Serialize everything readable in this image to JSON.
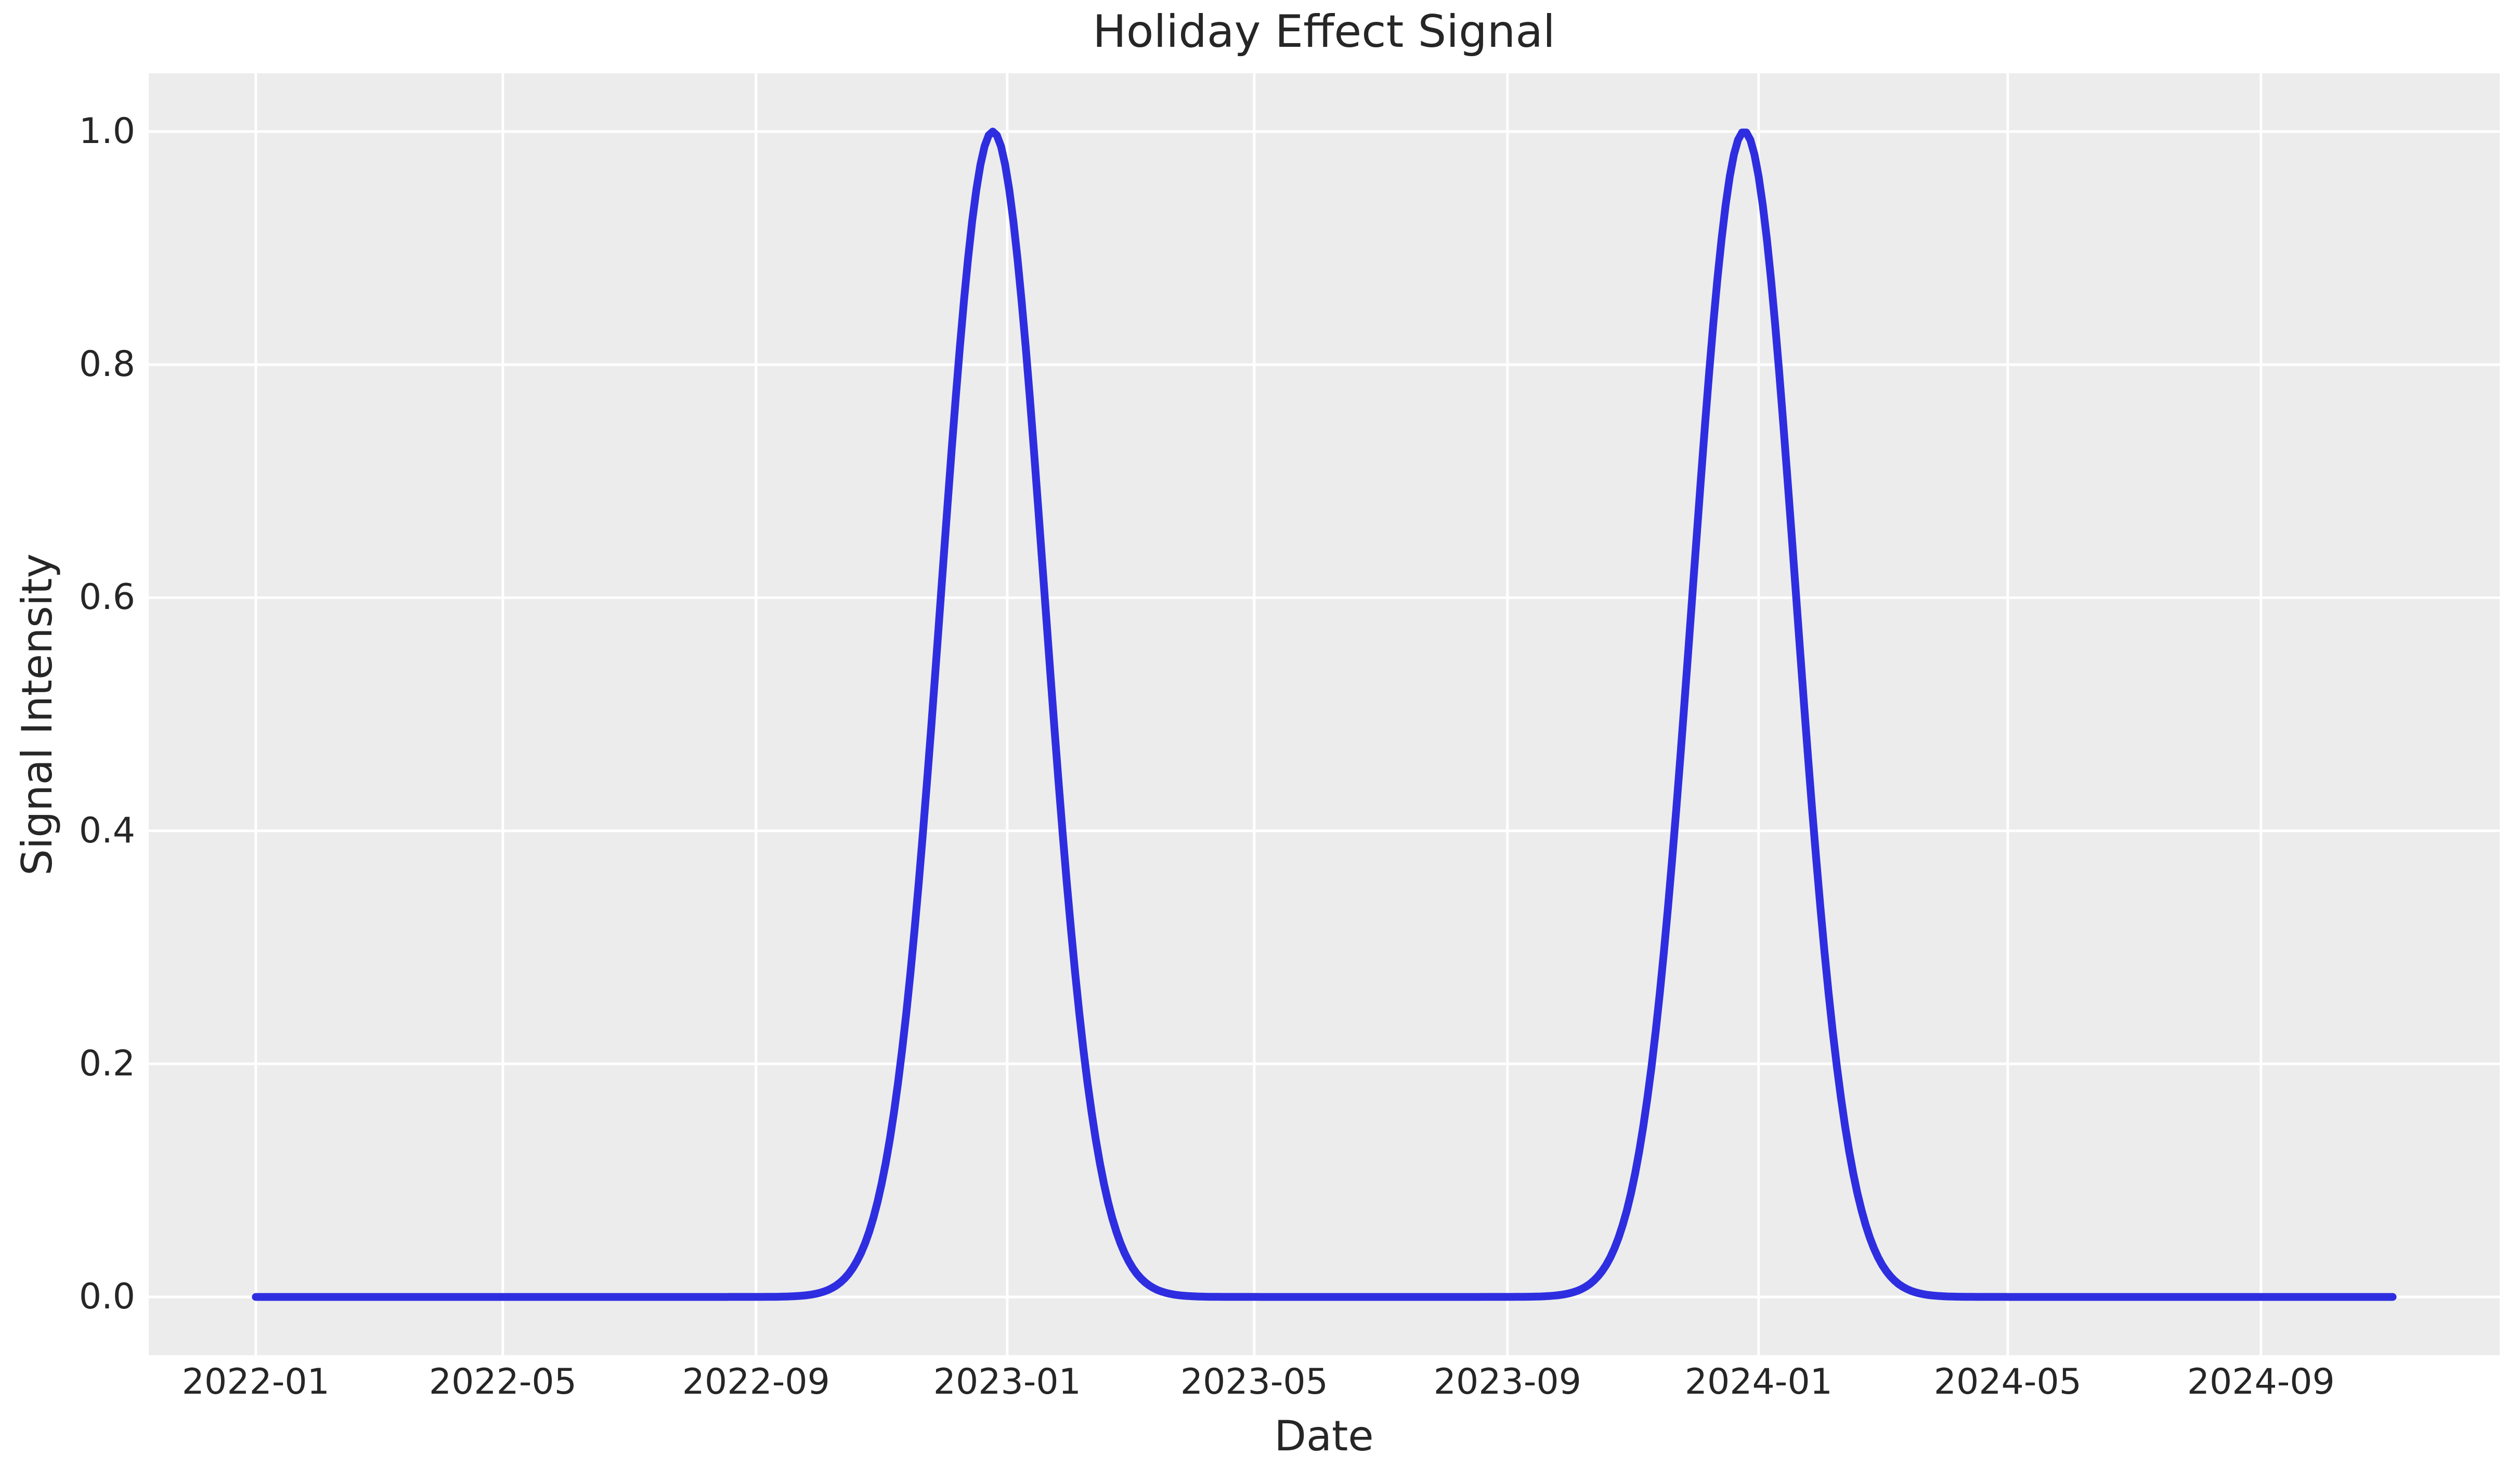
{
  "chart_data": {
    "type": "line",
    "title": "Holiday Effect Signal",
    "xlabel": "Date",
    "ylabel": "Signal Intensity",
    "grid": true,
    "legend": "none",
    "x_ticks": [
      {
        "label": "2022-01",
        "day": 0
      },
      {
        "label": "2022-05",
        "day": 120
      },
      {
        "label": "2022-09",
        "day": 243
      },
      {
        "label": "2023-01",
        "day": 365
      },
      {
        "label": "2023-05",
        "day": 485
      },
      {
        "label": "2023-09",
        "day": 608
      },
      {
        "label": "2024-01",
        "day": 730
      },
      {
        "label": "2024-05",
        "day": 851
      },
      {
        "label": "2024-09",
        "day": 974
      }
    ],
    "y_tick_labels": [
      "0.0",
      "0.2",
      "0.4",
      "0.6",
      "0.8",
      "1.0"
    ],
    "y_tick_values": [
      0.0,
      0.2,
      0.4,
      0.6,
      0.8,
      1.0
    ],
    "date_start": "2022-01-01",
    "date_end": "2024-11-04",
    "x_range_days": [
      0,
      1038
    ],
    "xlim_days": [
      -52,
      1090
    ],
    "ylim": [
      -0.05,
      1.05
    ],
    "series": [
      {
        "name": "holiday_signal",
        "color": "#2e2ee0",
        "shape": "sum of gaussian bumps",
        "amplitude": 1.0,
        "sigma_days": 25,
        "peak_dates": [
          "2022-12-25",
          "2023-12-25"
        ],
        "peak_days": [
          358,
          723
        ],
        "baseline": 0.0,
        "peak_value": 1.0,
        "monthly_samples": [
          {
            "date": "2022-01-01",
            "value": 0.0
          },
          {
            "date": "2022-02-01",
            "value": 0.0
          },
          {
            "date": "2022-03-01",
            "value": 0.0
          },
          {
            "date": "2022-04-01",
            "value": 0.0
          },
          {
            "date": "2022-05-01",
            "value": 0.0
          },
          {
            "date": "2022-06-01",
            "value": 0.0
          },
          {
            "date": "2022-07-01",
            "value": 0.0
          },
          {
            "date": "2022-08-01",
            "value": 0.0
          },
          {
            "date": "2022-09-01",
            "value": 0.0
          },
          {
            "date": "2022-10-01",
            "value": 0.003
          },
          {
            "date": "2022-11-01",
            "value": 0.097
          },
          {
            "date": "2022-12-01",
            "value": 0.631
          },
          {
            "date": "2022-12-25",
            "value": 1.0
          },
          {
            "date": "2023-01-01",
            "value": 0.962
          },
          {
            "date": "2023-02-01",
            "value": 0.315
          },
          {
            "date": "2023-03-01",
            "value": 0.031
          },
          {
            "date": "2023-04-01",
            "value": 0.001
          },
          {
            "date": "2023-05-01",
            "value": 0.0
          },
          {
            "date": "2023-06-01",
            "value": 0.0
          },
          {
            "date": "2023-07-01",
            "value": 0.0
          },
          {
            "date": "2023-08-01",
            "value": 0.0
          },
          {
            "date": "2023-09-01",
            "value": 0.0
          },
          {
            "date": "2023-10-01",
            "value": 0.003
          },
          {
            "date": "2023-11-01",
            "value": 0.097
          },
          {
            "date": "2023-12-01",
            "value": 0.631
          },
          {
            "date": "2023-12-25",
            "value": 1.0
          },
          {
            "date": "2024-01-01",
            "value": 0.962
          },
          {
            "date": "2024-02-01",
            "value": 0.315
          },
          {
            "date": "2024-03-01",
            "value": 0.028
          },
          {
            "date": "2024-04-01",
            "value": 0.001
          },
          {
            "date": "2024-05-01",
            "value": 0.0
          },
          {
            "date": "2024-06-01",
            "value": 0.0
          },
          {
            "date": "2024-07-01",
            "value": 0.0
          },
          {
            "date": "2024-08-01",
            "value": 0.0
          },
          {
            "date": "2024-09-01",
            "value": 0.0
          },
          {
            "date": "2024-10-01",
            "value": 0.0
          },
          {
            "date": "2024-11-04",
            "value": 0.0
          }
        ]
      }
    ],
    "colors": {
      "line": "#2e2ee0",
      "plot_background": "#ececed",
      "figure_background": "#ffffff",
      "gridline": "#ffffff",
      "text": "#262626"
    }
  }
}
